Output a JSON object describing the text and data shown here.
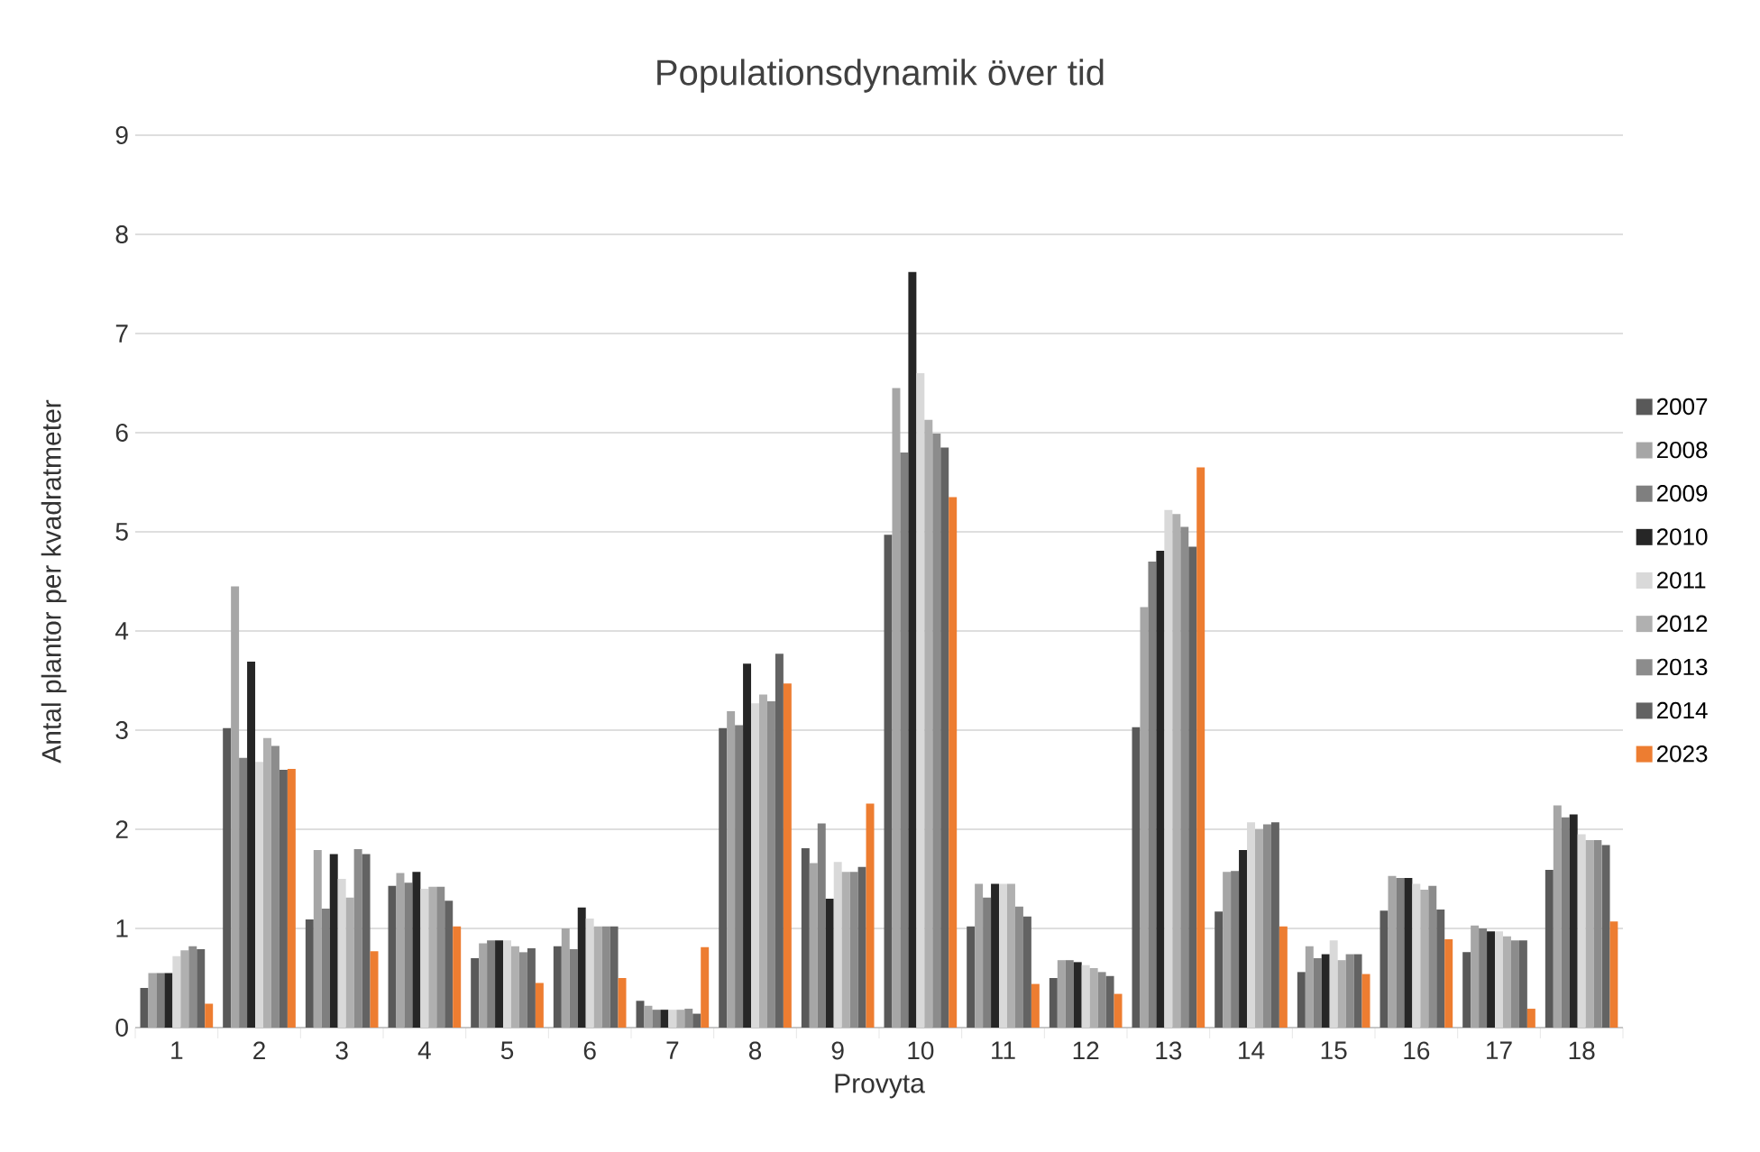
{
  "chart_data": {
    "type": "bar",
    "title": "Populationsdynamik över tid",
    "xlabel": "Provyta",
    "ylabel": "Antal plantor per kvadratmeter",
    "categories": [
      "1",
      "2",
      "3",
      "4",
      "5",
      "6",
      "7",
      "8",
      "9",
      "10",
      "11",
      "12",
      "13",
      "14",
      "15",
      "16",
      "17",
      "18"
    ],
    "series": [
      {
        "name": "2007",
        "color": "#595959",
        "values": [
          0.4,
          3.02,
          1.09,
          1.43,
          0.7,
          0.82,
          0.27,
          3.02,
          1.81,
          4.97,
          1.02,
          0.5,
          3.03,
          1.17,
          0.56,
          1.18,
          0.76,
          1.59
        ]
      },
      {
        "name": "2008",
        "color": "#a6a6a6",
        "values": [
          0.55,
          4.45,
          1.79,
          1.56,
          0.85,
          1.0,
          0.22,
          3.19,
          1.66,
          6.45,
          1.45,
          0.68,
          4.24,
          1.57,
          0.82,
          1.53,
          1.03,
          2.24
        ]
      },
      {
        "name": "2009",
        "color": "#7f7f7f",
        "values": [
          0.55,
          2.72,
          1.2,
          1.46,
          0.88,
          0.79,
          0.18,
          3.05,
          2.06,
          5.8,
          1.31,
          0.68,
          4.7,
          1.58,
          0.7,
          1.51,
          1.0,
          2.12
        ]
      },
      {
        "name": "2010",
        "color": "#262626",
        "values": [
          0.55,
          3.69,
          1.75,
          1.57,
          0.88,
          1.21,
          0.18,
          3.67,
          1.3,
          7.62,
          1.45,
          0.66,
          4.81,
          1.79,
          0.74,
          1.51,
          0.97,
          2.15
        ]
      },
      {
        "name": "2011",
        "color": "#d9d9d9",
        "values": [
          0.72,
          2.68,
          1.5,
          1.4,
          0.88,
          1.1,
          0.18,
          3.27,
          1.67,
          6.6,
          1.45,
          0.63,
          5.22,
          2.07,
          0.88,
          1.45,
          0.97,
          1.95
        ]
      },
      {
        "name": "2012",
        "color": "#b0b0b0",
        "values": [
          0.78,
          2.92,
          1.31,
          1.42,
          0.82,
          1.02,
          0.18,
          3.36,
          1.57,
          6.13,
          1.45,
          0.6,
          5.18,
          2.0,
          0.68,
          1.39,
          0.92,
          1.89
        ]
      },
      {
        "name": "2013",
        "color": "#8c8c8c",
        "values": [
          0.82,
          2.84,
          1.8,
          1.42,
          0.76,
          1.02,
          0.19,
          3.29,
          1.57,
          5.99,
          1.22,
          0.56,
          5.05,
          2.05,
          0.74,
          1.43,
          0.88,
          1.89
        ]
      },
      {
        "name": "2014",
        "color": "#636363",
        "values": [
          0.79,
          2.6,
          1.75,
          1.28,
          0.8,
          1.02,
          0.14,
          3.77,
          1.62,
          5.85,
          1.12,
          0.52,
          4.85,
          2.07,
          0.74,
          1.19,
          0.88,
          1.84
        ]
      },
      {
        "name": "2023",
        "color": "#ed7d31",
        "values": [
          0.24,
          2.61,
          0.77,
          1.02,
          0.45,
          0.5,
          0.81,
          3.47,
          2.26,
          5.35,
          0.44,
          0.34,
          5.65,
          1.02,
          0.54,
          0.89,
          0.19,
          1.07
        ]
      }
    ],
    "ylim": [
      0,
      9
    ],
    "yticks": [
      0,
      1,
      2,
      3,
      4,
      5,
      6,
      7,
      8,
      9
    ],
    "grid": "y",
    "legend": "right"
  }
}
